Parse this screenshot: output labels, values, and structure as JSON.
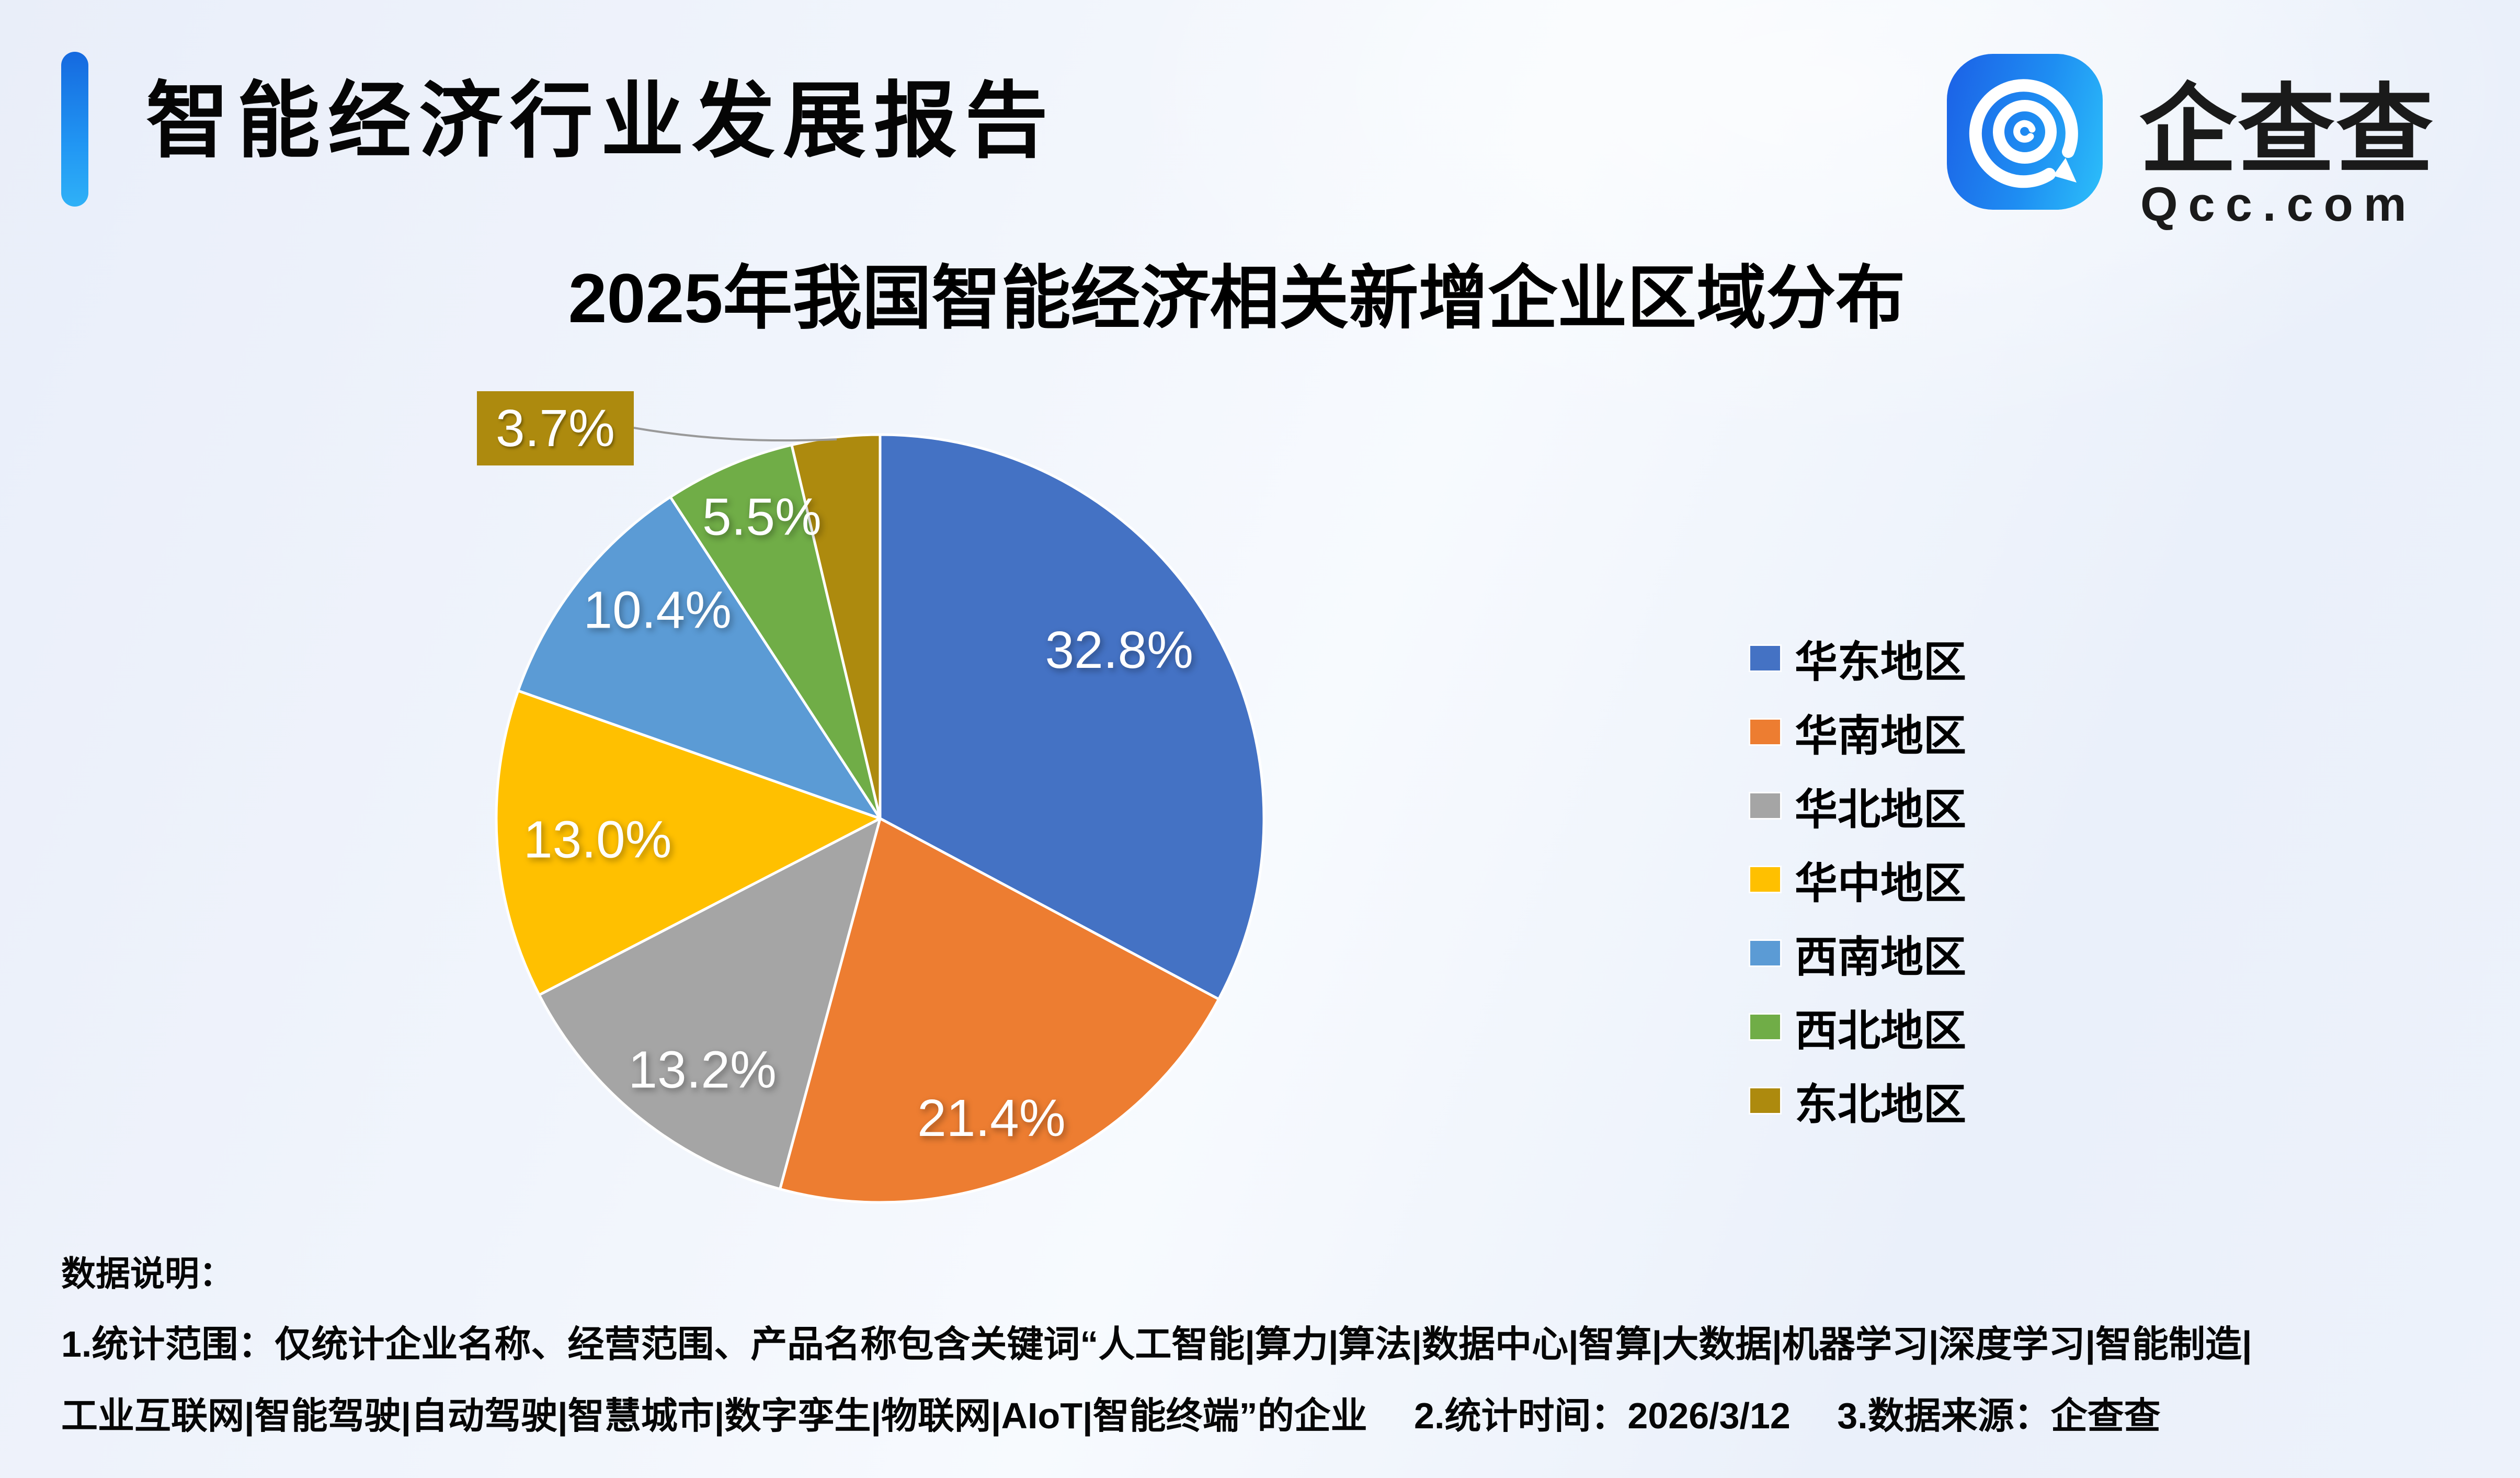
{
  "header": {
    "title": "智能经济行业发展报告",
    "brand_name": "企查查",
    "brand_domain": "Qcc.com"
  },
  "chart_data": {
    "type": "pie",
    "title": "2025年我国智能经济相关新增企业区域分布",
    "categories": [
      "华东地区",
      "华南地区",
      "华北地区",
      "华中地区",
      "西南地区",
      "西北地区",
      "东北地区"
    ],
    "values": [
      32.8,
      21.4,
      13.2,
      13.0,
      10.4,
      5.5,
      3.7
    ],
    "labels": [
      "32.8%",
      "21.4%",
      "13.2%",
      "13.0%",
      "10.4%",
      "5.5%",
      "3.7%"
    ],
    "unit": "%",
    "colors": [
      "#4472C4",
      "#ED7D31",
      "#A5A5A5",
      "#FFC000",
      "#5B9BD5",
      "#70AD47",
      "#AD8A0E"
    ],
    "start_angle_deg": 0,
    "direction": "clockwise",
    "legend_position": "right"
  },
  "notes": {
    "heading": "数据说明：",
    "line1": "1.统计范围：仅统计企业名称、经营范围、产品名称包含关键词“人工智能|算力|算法|数据中心|智算|大数据|机器学习|深度学习|智能制造|",
    "line2": "工业互联网|智能驾驶|自动驾驶|智慧城市|数字孪生|物联网|AIoT|智能终端”的企业　 2.统计时间：2026/3/12　 3.数据来源：企查查"
  }
}
